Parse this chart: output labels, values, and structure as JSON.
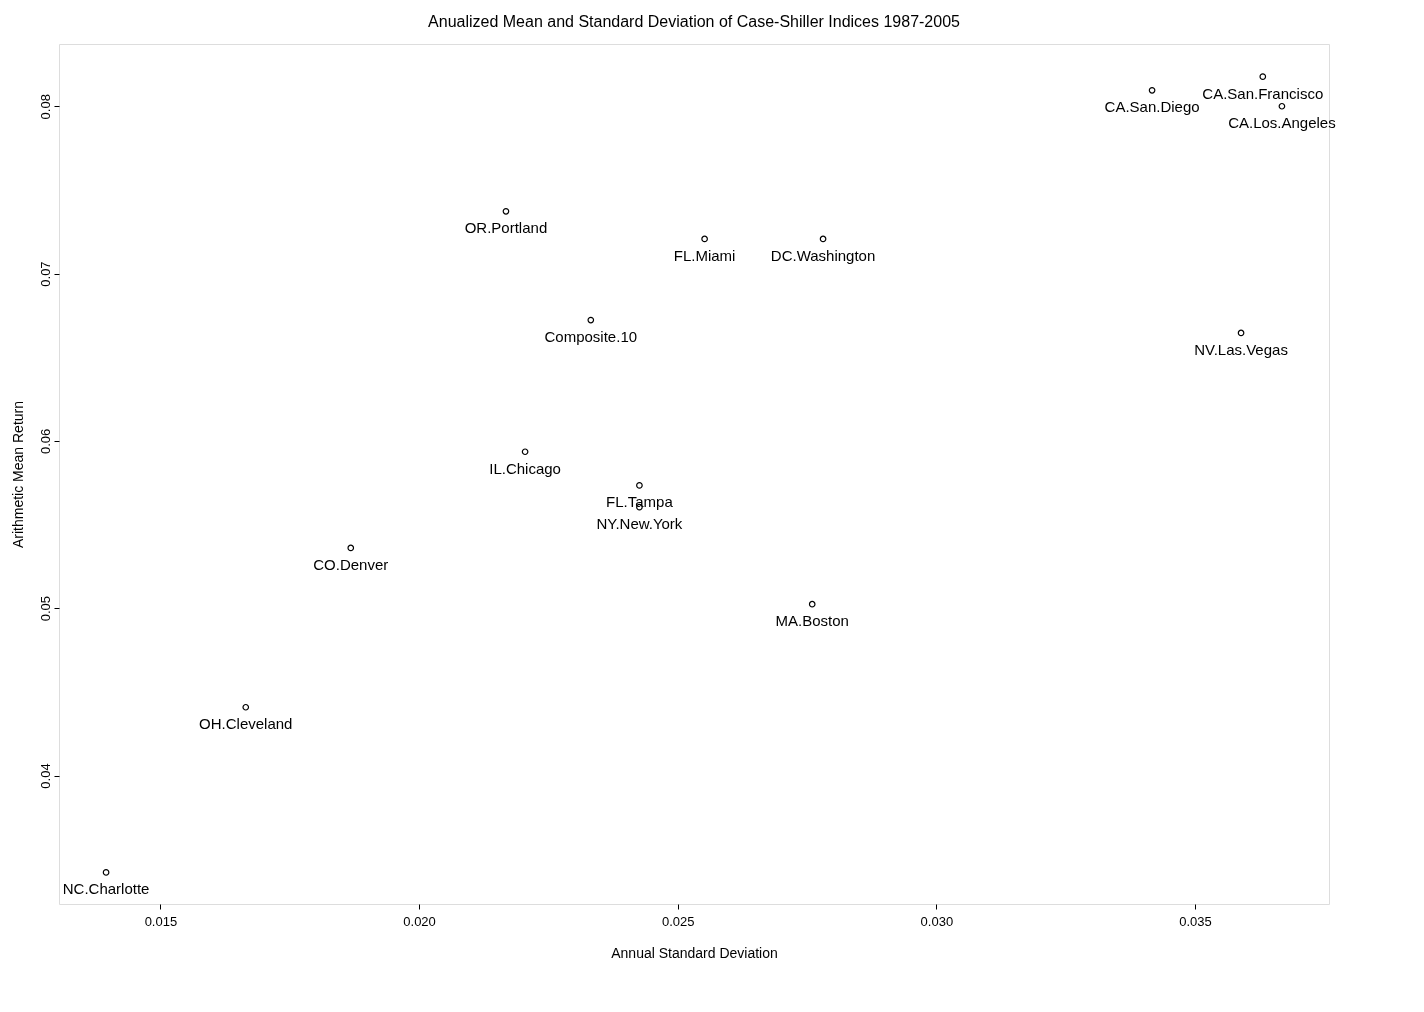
{
  "chart_data": {
    "type": "scatter",
    "title": "Anualized Mean and Standard Deviation of Case-Shiller Indices 1987-2005",
    "xlabel": "Annual Standard Deviation",
    "ylabel": "Arithmetic Mean Return",
    "x": [
      0.01395,
      0.01665,
      0.01868,
      0.02205,
      0.02168,
      0.02332,
      0.02426,
      0.02426,
      0.02552,
      0.02781,
      0.0276,
      0.03417,
      0.03631,
      0.03668,
      0.03589
    ],
    "series": [
      {
        "color": "#000000",
        "values": [
          0.03421,
          0.04408,
          0.0536,
          0.05935,
          0.07372,
          0.06722,
          0.05734,
          0.05604,
          0.07207,
          0.07207,
          0.05024,
          0.08095,
          0.08177,
          0.08,
          0.06645
        ]
      }
    ],
    "annotations": [
      {
        "text": "NC.Charlotte",
        "x": 0.01395,
        "y": 0.03421
      },
      {
        "text": "OH.Cleveland",
        "x": 0.01665,
        "y": 0.04408
      },
      {
        "text": "CO.Denver",
        "x": 0.01868,
        "y": 0.0536
      },
      {
        "text": "IL.Chicago",
        "x": 0.02205,
        "y": 0.05935
      },
      {
        "text": "OR.Portland",
        "x": 0.02168,
        "y": 0.07372
      },
      {
        "text": "Composite.10",
        "x": 0.02332,
        "y": 0.06722
      },
      {
        "text": "FL.Tampa",
        "x": 0.02426,
        "y": 0.05734
      },
      {
        "text": "NY.New.York",
        "x": 0.02426,
        "y": 0.05604
      },
      {
        "text": "FL.Miami",
        "x": 0.02552,
        "y": 0.07207
      },
      {
        "text": "DC.Washington",
        "x": 0.02781,
        "y": 0.07207
      },
      {
        "text": "MA.Boston",
        "x": 0.0276,
        "y": 0.05024
      },
      {
        "text": "CA.San.Diego",
        "x": 0.03417,
        "y": 0.08095
      },
      {
        "text": "CA.San.Francisco",
        "x": 0.03631,
        "y": 0.08177
      },
      {
        "text": "CA.Los.Angeles",
        "x": 0.03668,
        "y": 0.08
      },
      {
        "text": "NV.Las.Vegas",
        "x": 0.03589,
        "y": 0.06645
      }
    ],
    "xlim": [
      0.01304,
      0.03759
    ],
    "xticks": [
      0.015,
      {
        "value": 0.02,
        "label": "0.020"
      },
      0.025,
      {
        "value": 0.03,
        "label": "0.030"
      },
      0.035
    ],
    "ylim": [
      0.03232,
      0.08372
    ],
    "yticks": [
      0.04,
      0.05,
      0.06,
      0.07,
      0.08
    ],
    "marker": "circle",
    "grid": false
  }
}
